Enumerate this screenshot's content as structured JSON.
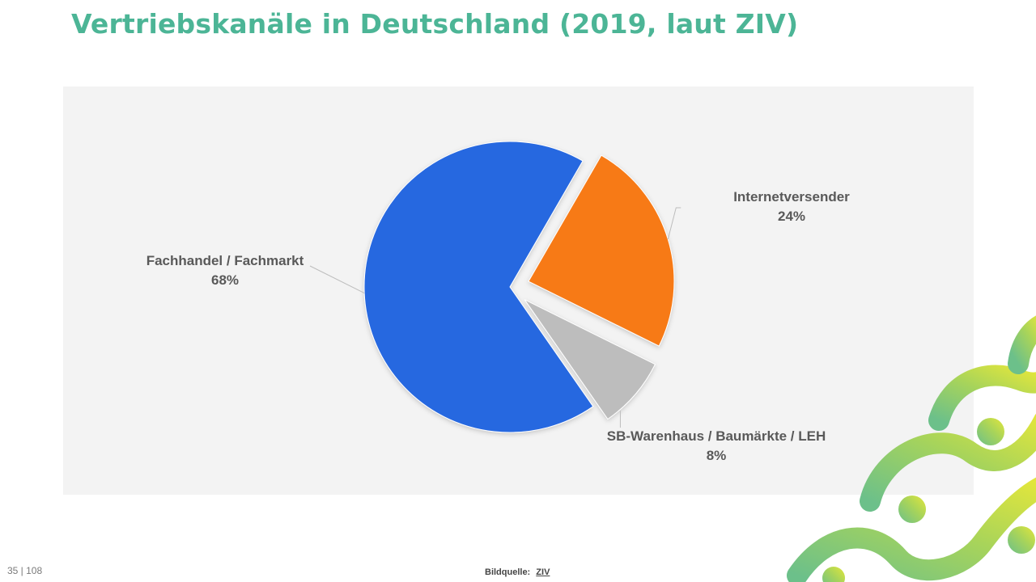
{
  "title": "Vertriebskanäle in Deutschland (2019, laut ZIV)",
  "chart_data": {
    "type": "pie",
    "title": "",
    "slices": [
      {
        "label": "Fachhandel / Fachmarkt",
        "value": 68,
        "value_label": "68%",
        "color": "#2767e0",
        "exploded": false
      },
      {
        "label": "Internetversender",
        "value": 24,
        "value_label": "24%",
        "color": "#f77a17",
        "exploded": true
      },
      {
        "label": "SB-Warenhaus / Baumärkte / LEH",
        "value": 8,
        "value_label": "8%",
        "color": "#bdbdbd",
        "exploded": true
      }
    ],
    "legend": "none",
    "data_labels": "outside with leader lines"
  },
  "footer": {
    "page_number": "35 | 108",
    "source_label": "Bildquelle:",
    "source_link": "ZIV"
  },
  "colors": {
    "title": "#4cb596",
    "panel_background": "#f3f3f3",
    "decoration_green": "#7cc47f",
    "decoration_yellow": "#d8e43a"
  }
}
